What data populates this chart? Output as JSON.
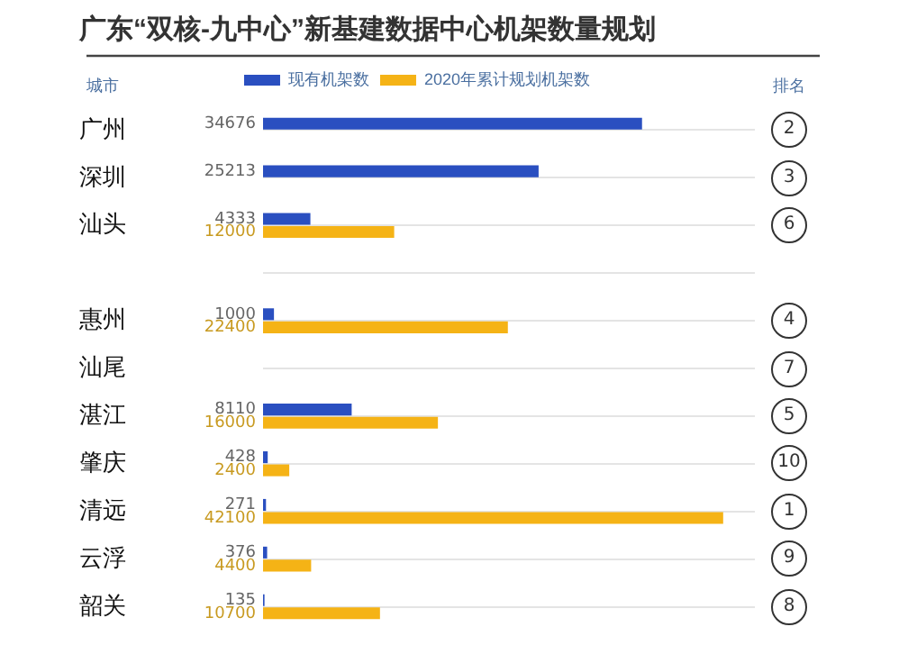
{
  "chart_data": {
    "type": "bar",
    "orientation": "horizontal",
    "title": "广东“双核-九中心”新基建数据中心机架数量规划",
    "ylabel": "城市",
    "categories": [
      "广州",
      "深圳",
      "汕头",
      null,
      "惠州",
      "汕尾",
      "湛江",
      "肇庆",
      "清远",
      "云浮",
      "韶关"
    ],
    "series": [
      {
        "name": "现有机架数",
        "color": "#2a4fc0",
        "values": [
          34676,
          25213,
          4333,
          null,
          1000,
          null,
          8110,
          428,
          271,
          376,
          135
        ]
      },
      {
        "name": "2020年累计规划机架数",
        "color": "#f5b316",
        "values": [
          null,
          null,
          12000,
          null,
          22400,
          null,
          16000,
          2400,
          42100,
          4400,
          10700
        ]
      }
    ],
    "xlim": [
      0,
      45000
    ],
    "tick_labels": "y",
    "grid": "y",
    "legend": "top",
    "data_labels": true,
    "annotations": [
      "排名",
      "2",
      "3",
      "6",
      "4",
      "7",
      "5",
      "10",
      "1",
      "9",
      "8"
    ]
  }
}
